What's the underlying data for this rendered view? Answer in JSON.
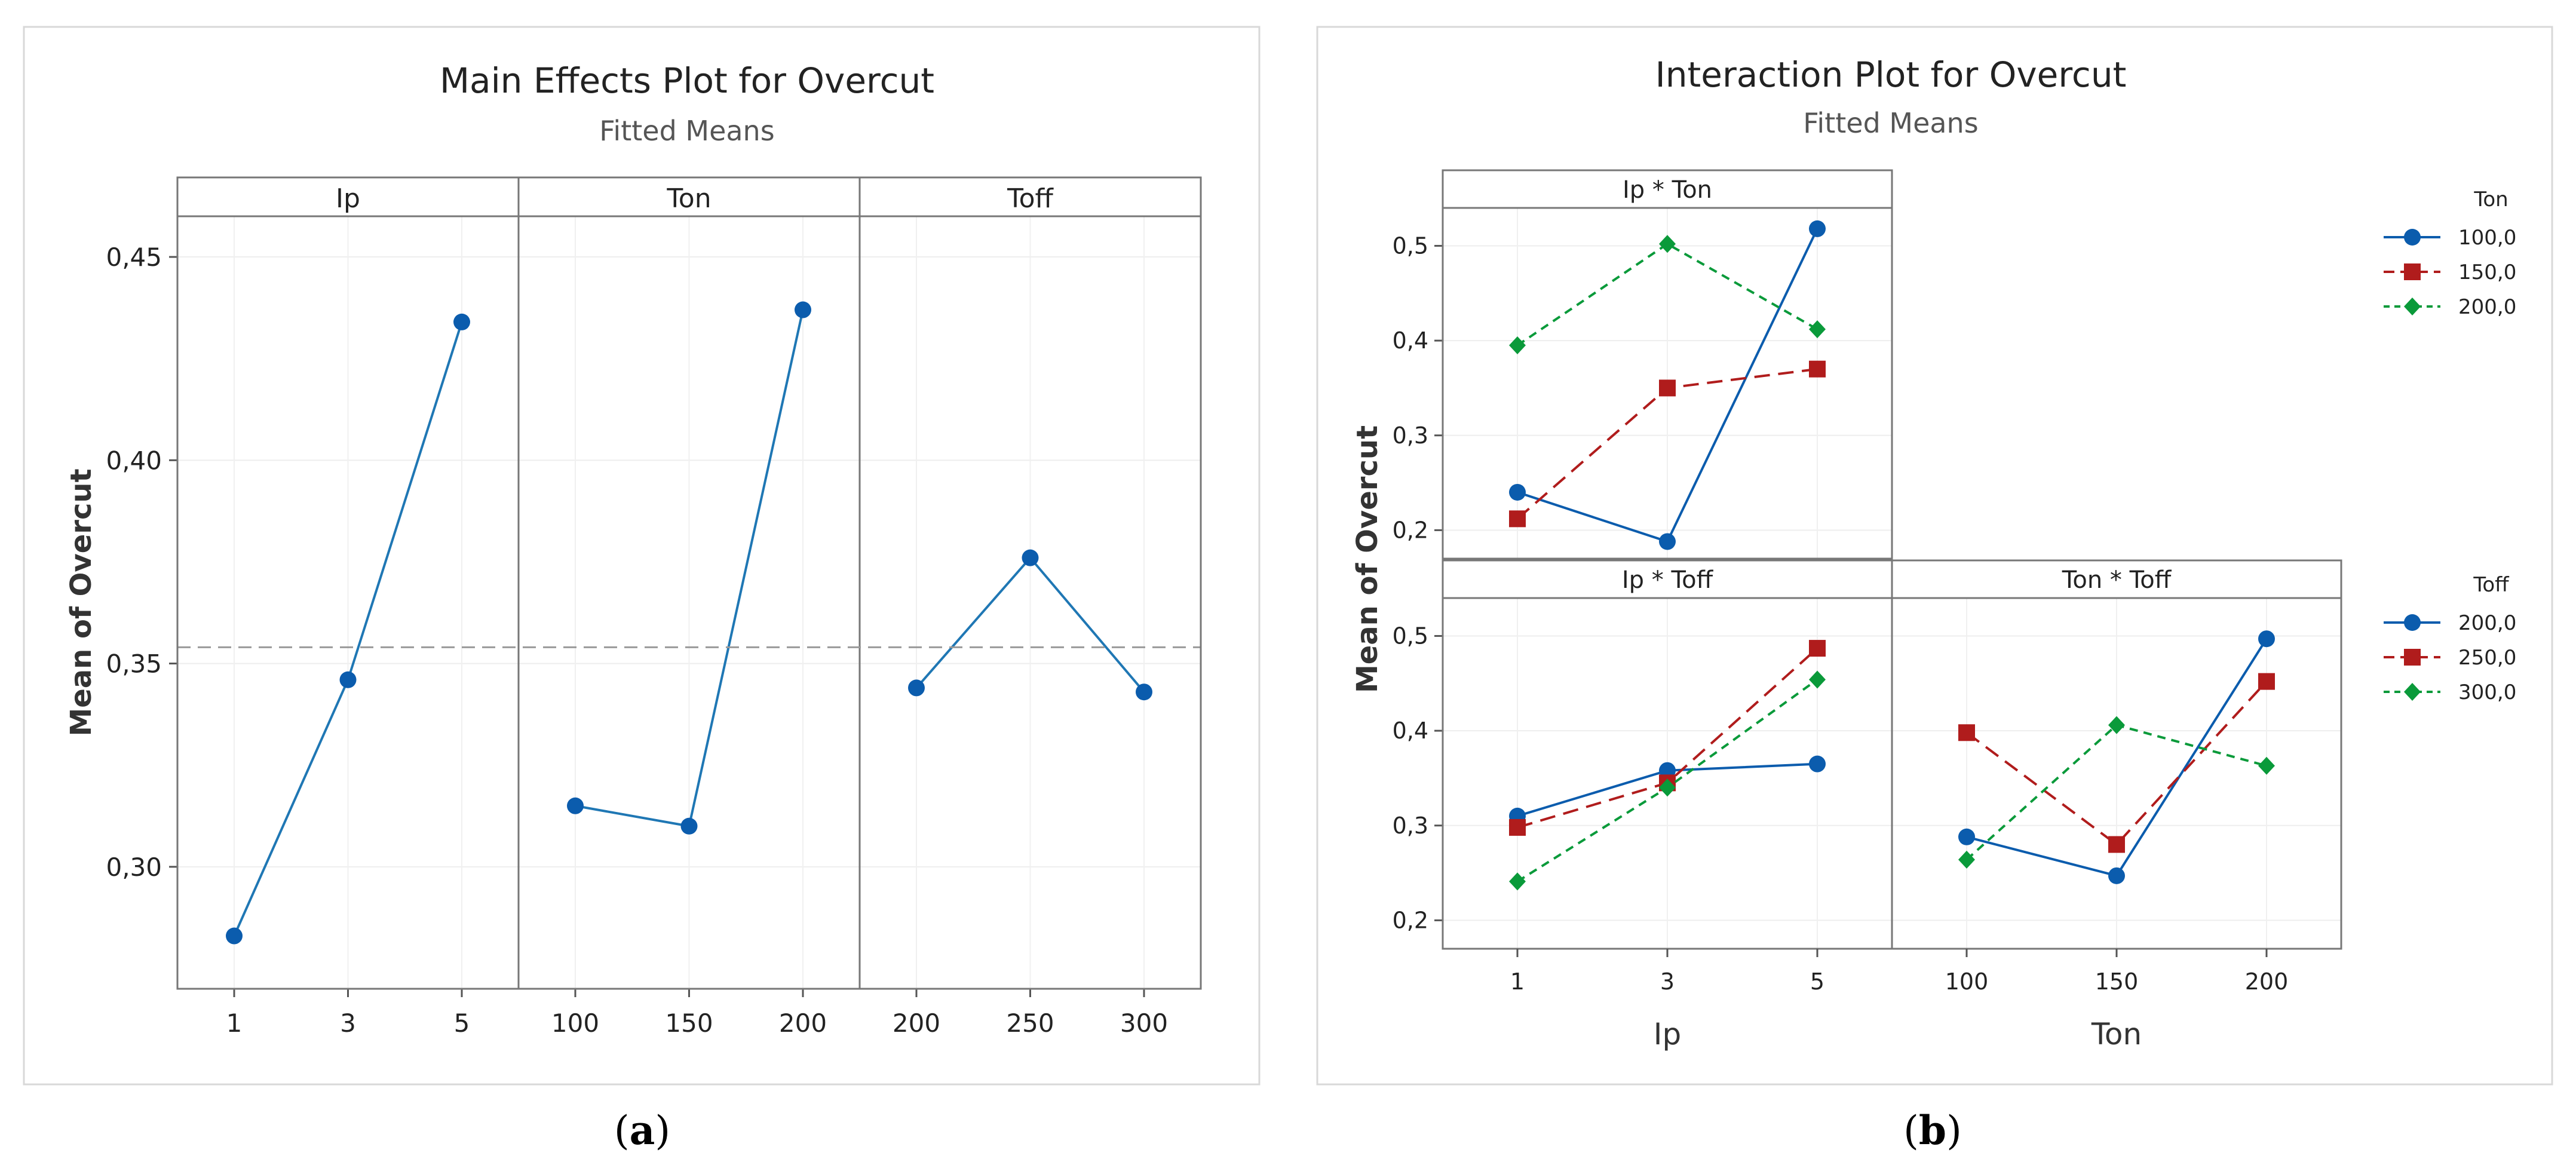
{
  "chart_data": [
    {
      "type": "line",
      "title": "Main Effects Plot for Overcut",
      "subtitle": "Fitted Means",
      "ylabel": "Mean of Overcut",
      "ylim": [
        0.27,
        0.46
      ],
      "yticks": [
        0.3,
        0.35,
        0.4,
        0.45
      ],
      "ytick_labels": [
        "0,30",
        "0,35",
        "0,40",
        "0,45"
      ],
      "reference_line": 0.354,
      "color": "#1f77b4",
      "panels": [
        {
          "label": "Ip",
          "categories": [
            "1",
            "3",
            "5"
          ],
          "values": [
            0.283,
            0.346,
            0.434
          ]
        },
        {
          "label": "Ton",
          "categories": [
            "100",
            "150",
            "200"
          ],
          "values": [
            0.315,
            0.31,
            0.437
          ]
        },
        {
          "label": "Toff",
          "categories": [
            "200",
            "250",
            "300"
          ],
          "values": [
            0.344,
            0.376,
            0.343
          ]
        }
      ],
      "caption": {
        "open": "(",
        "letter": "a",
        "close": ")"
      }
    },
    {
      "type": "line",
      "title": "Interaction Plot for Overcut",
      "subtitle": "Fitted Means",
      "ylabel": "Mean of Overcut",
      "ylim": [
        0.17,
        0.54
      ],
      "yticks": [
        0.2,
        0.3,
        0.4,
        0.5
      ],
      "ytick_labels": [
        "0,2",
        "0,3",
        "0,4",
        "0,5"
      ],
      "xlabels": {
        "left": "Ip",
        "right": "Ton"
      },
      "xticks": {
        "left": [
          "1",
          "3",
          "5"
        ],
        "right": [
          "100",
          "150",
          "200"
        ]
      },
      "colors": [
        "#0b5cad",
        "#b01c1c",
        "#0a9a3a"
      ],
      "panels": [
        {
          "label": "Ip * Ton",
          "categories": [
            "1",
            "3",
            "5"
          ],
          "series": [
            {
              "name": "100,0",
              "values": [
                0.24,
                0.188,
                0.518
              ]
            },
            {
              "name": "150,0",
              "values": [
                0.212,
                0.35,
                0.37
              ]
            },
            {
              "name": "200,0",
              "values": [
                0.395,
                0.502,
                0.412
              ]
            }
          ]
        },
        {
          "label": "Ip * Toff",
          "categories": [
            "1",
            "3",
            "5"
          ],
          "series": [
            {
              "name": "200,0",
              "values": [
                0.31,
                0.358,
                0.365
              ]
            },
            {
              "name": "250,0",
              "values": [
                0.298,
                0.345,
                0.487
              ]
            },
            {
              "name": "300,0",
              "values": [
                0.241,
                0.34,
                0.454
              ]
            }
          ]
        },
        {
          "label": "Ton * Toff",
          "categories": [
            "100",
            "150",
            "200"
          ],
          "series": [
            {
              "name": "200,0",
              "values": [
                0.288,
                0.247,
                0.497
              ]
            },
            {
              "name": "250,0",
              "values": [
                0.398,
                0.28,
                0.452
              ]
            },
            {
              "name": "300,0",
              "values": [
                0.264,
                0.406,
                0.363
              ]
            }
          ]
        }
      ],
      "legends": [
        {
          "title": "Ton",
          "entries": [
            "100,0",
            "150,0",
            "200,0"
          ]
        },
        {
          "title": "Toff",
          "entries": [
            "200,0",
            "250,0",
            "300,0"
          ]
        }
      ],
      "caption": {
        "open": "(",
        "letter": "b",
        "close": ")"
      }
    }
  ]
}
